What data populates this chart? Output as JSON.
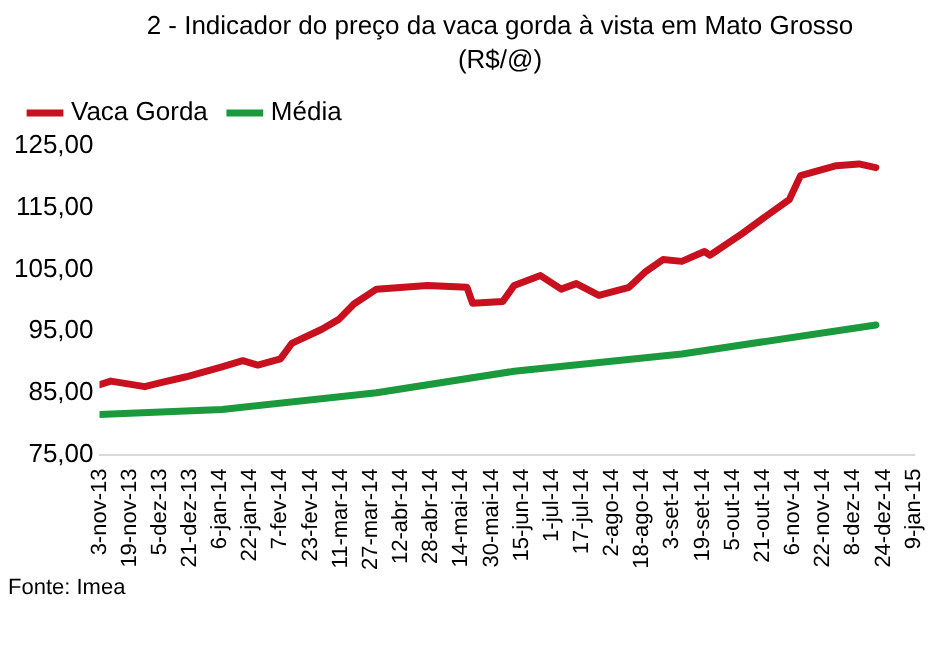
{
  "chart_data": {
    "type": "line",
    "title": "2 - Indicador do preço da vaca gorda à vista em Mato Grosso (R$/@)",
    "annotations": [
      "Fonte: Imea"
    ],
    "series": [
      {
        "name": "Vaca Gorda",
        "color": "#c8101e",
        "x": [
          "2013-11-03",
          "2013-11-09",
          "2013-11-27",
          "2013-12-05",
          "2013-12-19",
          "2014-01-07",
          "2014-01-18",
          "2014-01-26",
          "2014-02-07",
          "2014-02-13",
          "2014-03-01",
          "2014-03-10",
          "2014-03-18",
          "2014-03-30",
          "2014-04-26",
          "2014-05-17",
          "2014-05-20",
          "2014-06-05",
          "2014-06-11",
          "2014-06-25",
          "2014-07-06",
          "2014-07-14",
          "2014-07-26",
          "2014-08-11",
          "2014-08-20",
          "2014-08-29",
          "2014-09-08",
          "2014-09-20",
          "2014-09-23",
          "2014-10-10",
          "2014-10-23",
          "2014-11-04",
          "2014-11-10",
          "2014-11-29",
          "2014-12-11",
          "2014-12-20"
        ],
        "values": [
          86.3,
          86.9,
          86,
          86.6,
          87.6,
          89.2,
          90.2,
          89.5,
          90.5,
          93,
          95.3,
          96.9,
          99.4,
          101.8,
          102.4,
          102.1,
          99.5,
          99.8,
          102.4,
          104,
          101.8,
          102.7,
          100.8,
          102.1,
          104.7,
          106.6,
          106.3,
          107.9,
          107.3,
          110.8,
          113.7,
          116.3,
          120.2,
          121.8,
          122.1,
          121.5
        ]
      },
      {
        "name": "Média",
        "color": "#1a9a3c",
        "x": [
          "2013-11-03",
          "2014-01-07",
          "2014-03-30",
          "2014-06-11",
          "2014-09-08",
          "2014-12-20"
        ],
        "values": [
          81.5,
          82.3,
          85,
          88.5,
          91.3,
          96
        ]
      }
    ],
    "xlim": [
      "2013-11-03",
      "2015-01-09"
    ],
    "xticks": [
      {
        "value": "2013-11-03",
        "label": "3-nov-13"
      },
      {
        "value": "2013-11-19",
        "label": "19-nov-13"
      },
      {
        "value": "2013-12-05",
        "label": "5-dez-13"
      },
      {
        "value": "2013-12-21",
        "label": "21-dez-13"
      },
      {
        "value": "2014-01-06",
        "label": "6-jan-14"
      },
      {
        "value": "2014-01-22",
        "label": "22-jan-14"
      },
      {
        "value": "2014-02-07",
        "label": "7-fev-14"
      },
      {
        "value": "2014-02-23",
        "label": "23-fev-14"
      },
      {
        "value": "2014-03-11",
        "label": "11-mar-14"
      },
      {
        "value": "2014-03-27",
        "label": "27-mar-14"
      },
      {
        "value": "2014-04-12",
        "label": "12-abr-14"
      },
      {
        "value": "2014-04-28",
        "label": "28-abr-14"
      },
      {
        "value": "2014-05-14",
        "label": "14-mai-14"
      },
      {
        "value": "2014-05-30",
        "label": "30-mai-14"
      },
      {
        "value": "2014-06-15",
        "label": "15-jun-14"
      },
      {
        "value": "2014-07-01",
        "label": "1-jul-14"
      },
      {
        "value": "2014-07-17",
        "label": "17-jul-14"
      },
      {
        "value": "2014-08-02",
        "label": "2-ago-14"
      },
      {
        "value": "2014-08-18",
        "label": "18-ago-14"
      },
      {
        "value": "2014-09-03",
        "label": "3-set-14"
      },
      {
        "value": "2014-09-19",
        "label": "19-set-14"
      },
      {
        "value": "2014-10-05",
        "label": "5-out-14"
      },
      {
        "value": "2014-10-21",
        "label": "21-out-14"
      },
      {
        "value": "2014-11-06",
        "label": "6-nov-14"
      },
      {
        "value": "2014-11-22",
        "label": "22-nov-14"
      },
      {
        "value": "2014-12-08",
        "label": "8-dez-14"
      },
      {
        "value": "2014-12-24",
        "label": "24-dez-14"
      },
      {
        "value": "2015-01-09",
        "label": "9-jan-15"
      }
    ],
    "ylim": [
      75,
      125
    ],
    "yticks": [
      {
        "value": 75,
        "label": "75,00"
      },
      {
        "value": 85,
        "label": "85,00"
      },
      {
        "value": 95,
        "label": "95,00"
      },
      {
        "value": 105,
        "label": "105,00"
      },
      {
        "value": 115,
        "label": "115,00"
      },
      {
        "value": 125,
        "label": "125,00"
      }
    ],
    "grid": false,
    "legend": "top left",
    "marker": "none",
    "line_style": "solid"
  }
}
